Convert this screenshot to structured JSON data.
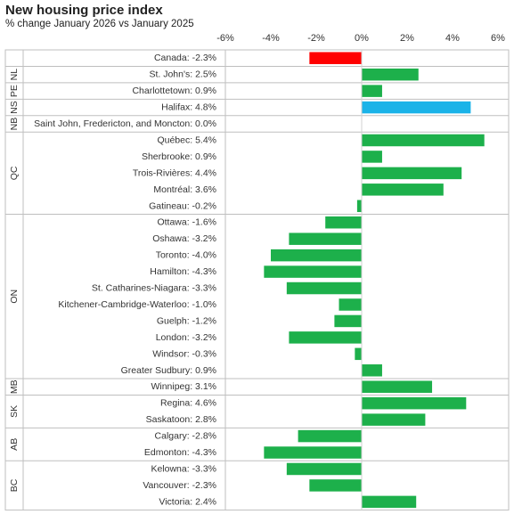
{
  "chart_data": {
    "type": "bar",
    "orientation": "horizontal",
    "title": "New housing price index",
    "subtitle": "% change January 2026 vs January 2025",
    "xlim": [
      -6,
      6
    ],
    "xticks": [
      "-6%",
      "-4%",
      "-2%",
      "0%",
      "2%",
      "4%",
      "6%"
    ],
    "colors": {
      "default": "#1db04b",
      "canada": "#ff0000",
      "halifax": "#1ab3e8"
    },
    "categories": [
      {
        "label": "Canada: -2.3%",
        "value": -2.3,
        "color": "canada",
        "group": ""
      },
      {
        "label": "St. John's: 2.5%",
        "value": 2.5,
        "color": "default",
        "group": "NL"
      },
      {
        "label": "Charlottetown: 0.9%",
        "value": 0.9,
        "color": "default",
        "group": "PE"
      },
      {
        "label": "Halifax: 4.8%",
        "value": 4.8,
        "color": "halifax",
        "group": "NS"
      },
      {
        "label": "Saint John, Fredericton, and Moncton: 0.0%",
        "value": 0.0,
        "color": "default",
        "group": "NB"
      },
      {
        "label": "Québec: 5.4%",
        "value": 5.4,
        "color": "default",
        "group": "QC"
      },
      {
        "label": "Sherbrooke: 0.9%",
        "value": 0.9,
        "color": "default",
        "group": "QC"
      },
      {
        "label": "Trois-Rivières: 4.4%",
        "value": 4.4,
        "color": "default",
        "group": "QC"
      },
      {
        "label": "Montréal: 3.6%",
        "value": 3.6,
        "color": "default",
        "group": "QC"
      },
      {
        "label": "Gatineau: -0.2%",
        "value": -0.2,
        "color": "default",
        "group": "QC"
      },
      {
        "label": "Ottawa: -1.6%",
        "value": -1.6,
        "color": "default",
        "group": "ON"
      },
      {
        "label": "Oshawa: -3.2%",
        "value": -3.2,
        "color": "default",
        "group": "ON"
      },
      {
        "label": "Toronto: -4.0%",
        "value": -4.0,
        "color": "default",
        "group": "ON"
      },
      {
        "label": "Hamilton: -4.3%",
        "value": -4.3,
        "color": "default",
        "group": "ON"
      },
      {
        "label": "St. Catharines-Niagara: -3.3%",
        "value": -3.3,
        "color": "default",
        "group": "ON"
      },
      {
        "label": "Kitchener-Cambridge-Waterloo: -1.0%",
        "value": -1.0,
        "color": "default",
        "group": "ON"
      },
      {
        "label": "Guelph: -1.2%",
        "value": -1.2,
        "color": "default",
        "group": "ON"
      },
      {
        "label": "London: -3.2%",
        "value": -3.2,
        "color": "default",
        "group": "ON"
      },
      {
        "label": "Windsor: -0.3%",
        "value": -0.3,
        "color": "default",
        "group": "ON"
      },
      {
        "label": "Greater Sudbury: 0.9%",
        "value": 0.9,
        "color": "default",
        "group": "ON"
      },
      {
        "label": "Winnipeg: 3.1%",
        "value": 3.1,
        "color": "default",
        "group": "MB"
      },
      {
        "label": "Regina: 4.6%",
        "value": 4.6,
        "color": "default",
        "group": "SK"
      },
      {
        "label": "Saskatoon: 2.8%",
        "value": 2.8,
        "color": "default",
        "group": "SK"
      },
      {
        "label": "Calgary: -2.8%",
        "value": -2.8,
        "color": "default",
        "group": "AB"
      },
      {
        "label": "Edmonton: -4.3%",
        "value": -4.3,
        "color": "default",
        "group": "AB"
      },
      {
        "label": "Kelowna: -3.3%",
        "value": -3.3,
        "color": "default",
        "group": "BC"
      },
      {
        "label": "Vancouver: -2.3%",
        "value": -2.3,
        "color": "default",
        "group": "BC"
      },
      {
        "label": "Victoria: 2.4%",
        "value": 2.4,
        "color": "default",
        "group": "BC"
      }
    ],
    "groups": [
      "NL",
      "PE",
      "NS",
      "NB",
      "QC",
      "ON",
      "MB",
      "SK",
      "AB",
      "BC"
    ]
  }
}
